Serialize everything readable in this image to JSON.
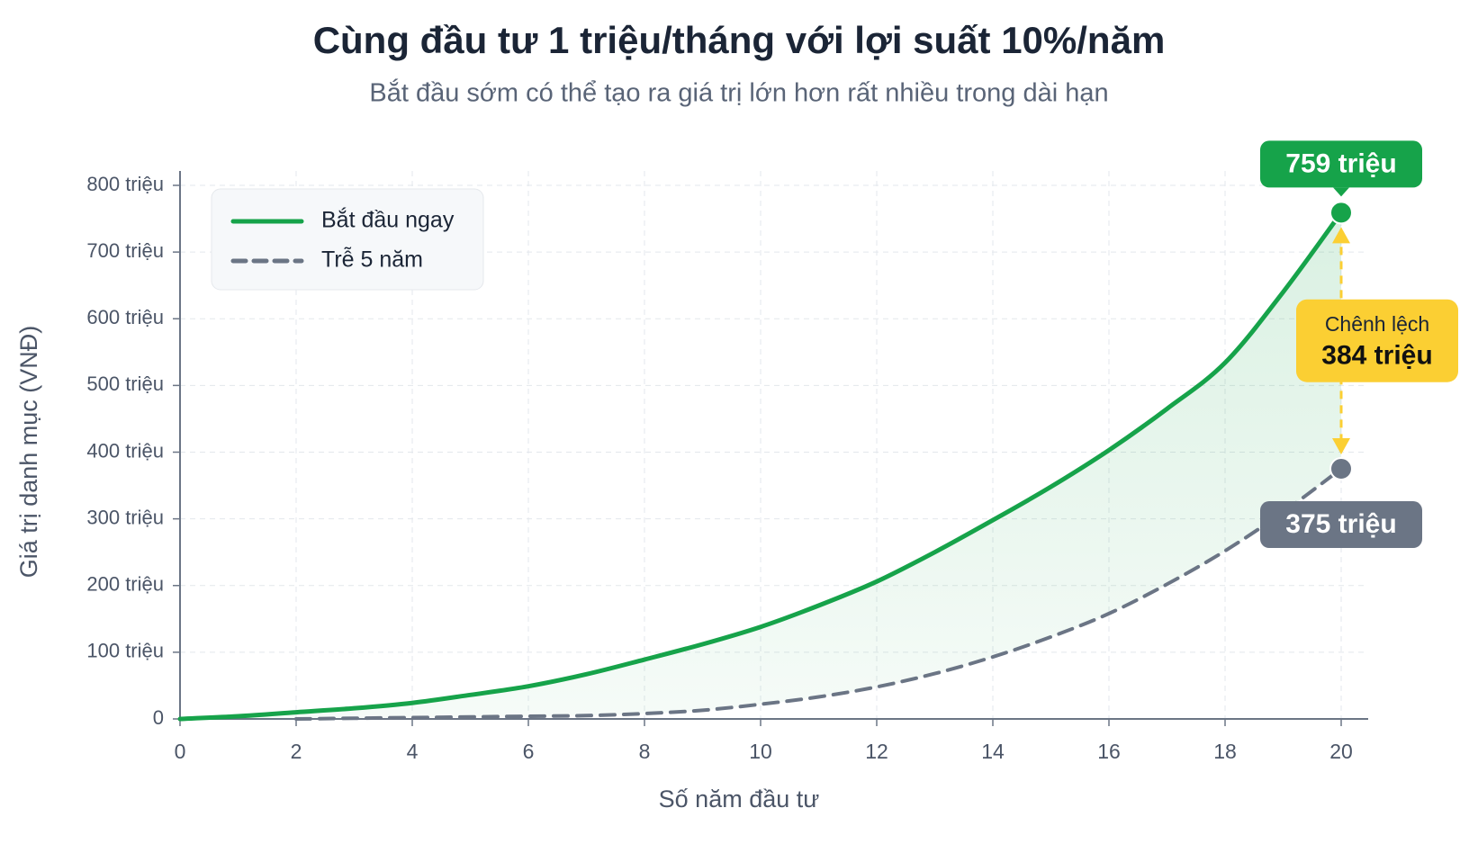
{
  "chart_data": {
    "type": "line",
    "title": "Cùng đầu tư 1 triệu/tháng với lợi suất 10%/năm",
    "subtitle": "Bắt đầu sớm có thể tạo ra giá trị lớn hơn rất nhiều trong dài hạn",
    "x_label": "Số năm đầu tư",
    "y_label": "Giá trị danh mục (VNĐ)",
    "x": [
      0,
      1,
      2,
      3,
      4,
      5,
      6,
      7,
      8,
      9,
      10,
      11,
      12,
      13,
      14,
      15,
      16,
      17,
      18,
      19,
      20
    ],
    "series": [
      {
        "name": "Bắt đầu ngay",
        "color": "#16a34a",
        "dashed": false,
        "values": [
          0,
          4,
          10,
          16,
          24,
          36,
          49,
          67,
          89,
          112,
          138,
          170,
          206,
          250,
          298,
          348,
          403,
          465,
          534,
          640,
          759
        ],
        "value_labels": [
          null,
          null,
          null,
          null,
          null,
          null,
          null,
          null,
          null,
          null,
          null,
          null,
          null,
          null,
          null,
          null,
          null,
          null,
          null,
          null,
          "759 triệu"
        ]
      },
      {
        "name": "Trễ 5 năm",
        "color": "#6b7585",
        "dashed": true,
        "values": [
          null,
          null,
          0,
          1,
          2,
          3,
          4,
          5,
          8,
          13,
          22,
          33,
          48,
          68,
          93,
          123,
          158,
          202,
          252,
          310,
          375
        ],
        "value_labels": [
          null,
          null,
          null,
          null,
          null,
          null,
          null,
          null,
          null,
          null,
          null,
          null,
          null,
          null,
          null,
          null,
          null,
          null,
          null,
          null,
          "375 triệu"
        ]
      }
    ],
    "difference": {
      "label": "Chênh lệch",
      "value": 384,
      "value_label": "384 triệu",
      "color": "#fbcf33"
    },
    "xlim": [
      0,
      20
    ],
    "xticks": [
      0,
      2,
      4,
      6,
      8,
      10,
      12,
      14,
      16,
      18,
      20
    ],
    "ylim": [
      0,
      800
    ],
    "yticks": [
      0,
      {
        "value": 100,
        "label": "100 triệu"
      },
      {
        "value": 200,
        "label": "200 triệu"
      },
      {
        "value": 300,
        "label": "300 triệu"
      },
      {
        "value": 400,
        "label": "400 triệu"
      },
      {
        "value": 500,
        "label": "500 triệu"
      },
      {
        "value": 600,
        "label": "600 triệu"
      },
      {
        "value": 700,
        "label": "700 triệu"
      },
      {
        "value": 800,
        "label": "800 triệu"
      }
    ],
    "grid": true,
    "legend": "top-left"
  }
}
